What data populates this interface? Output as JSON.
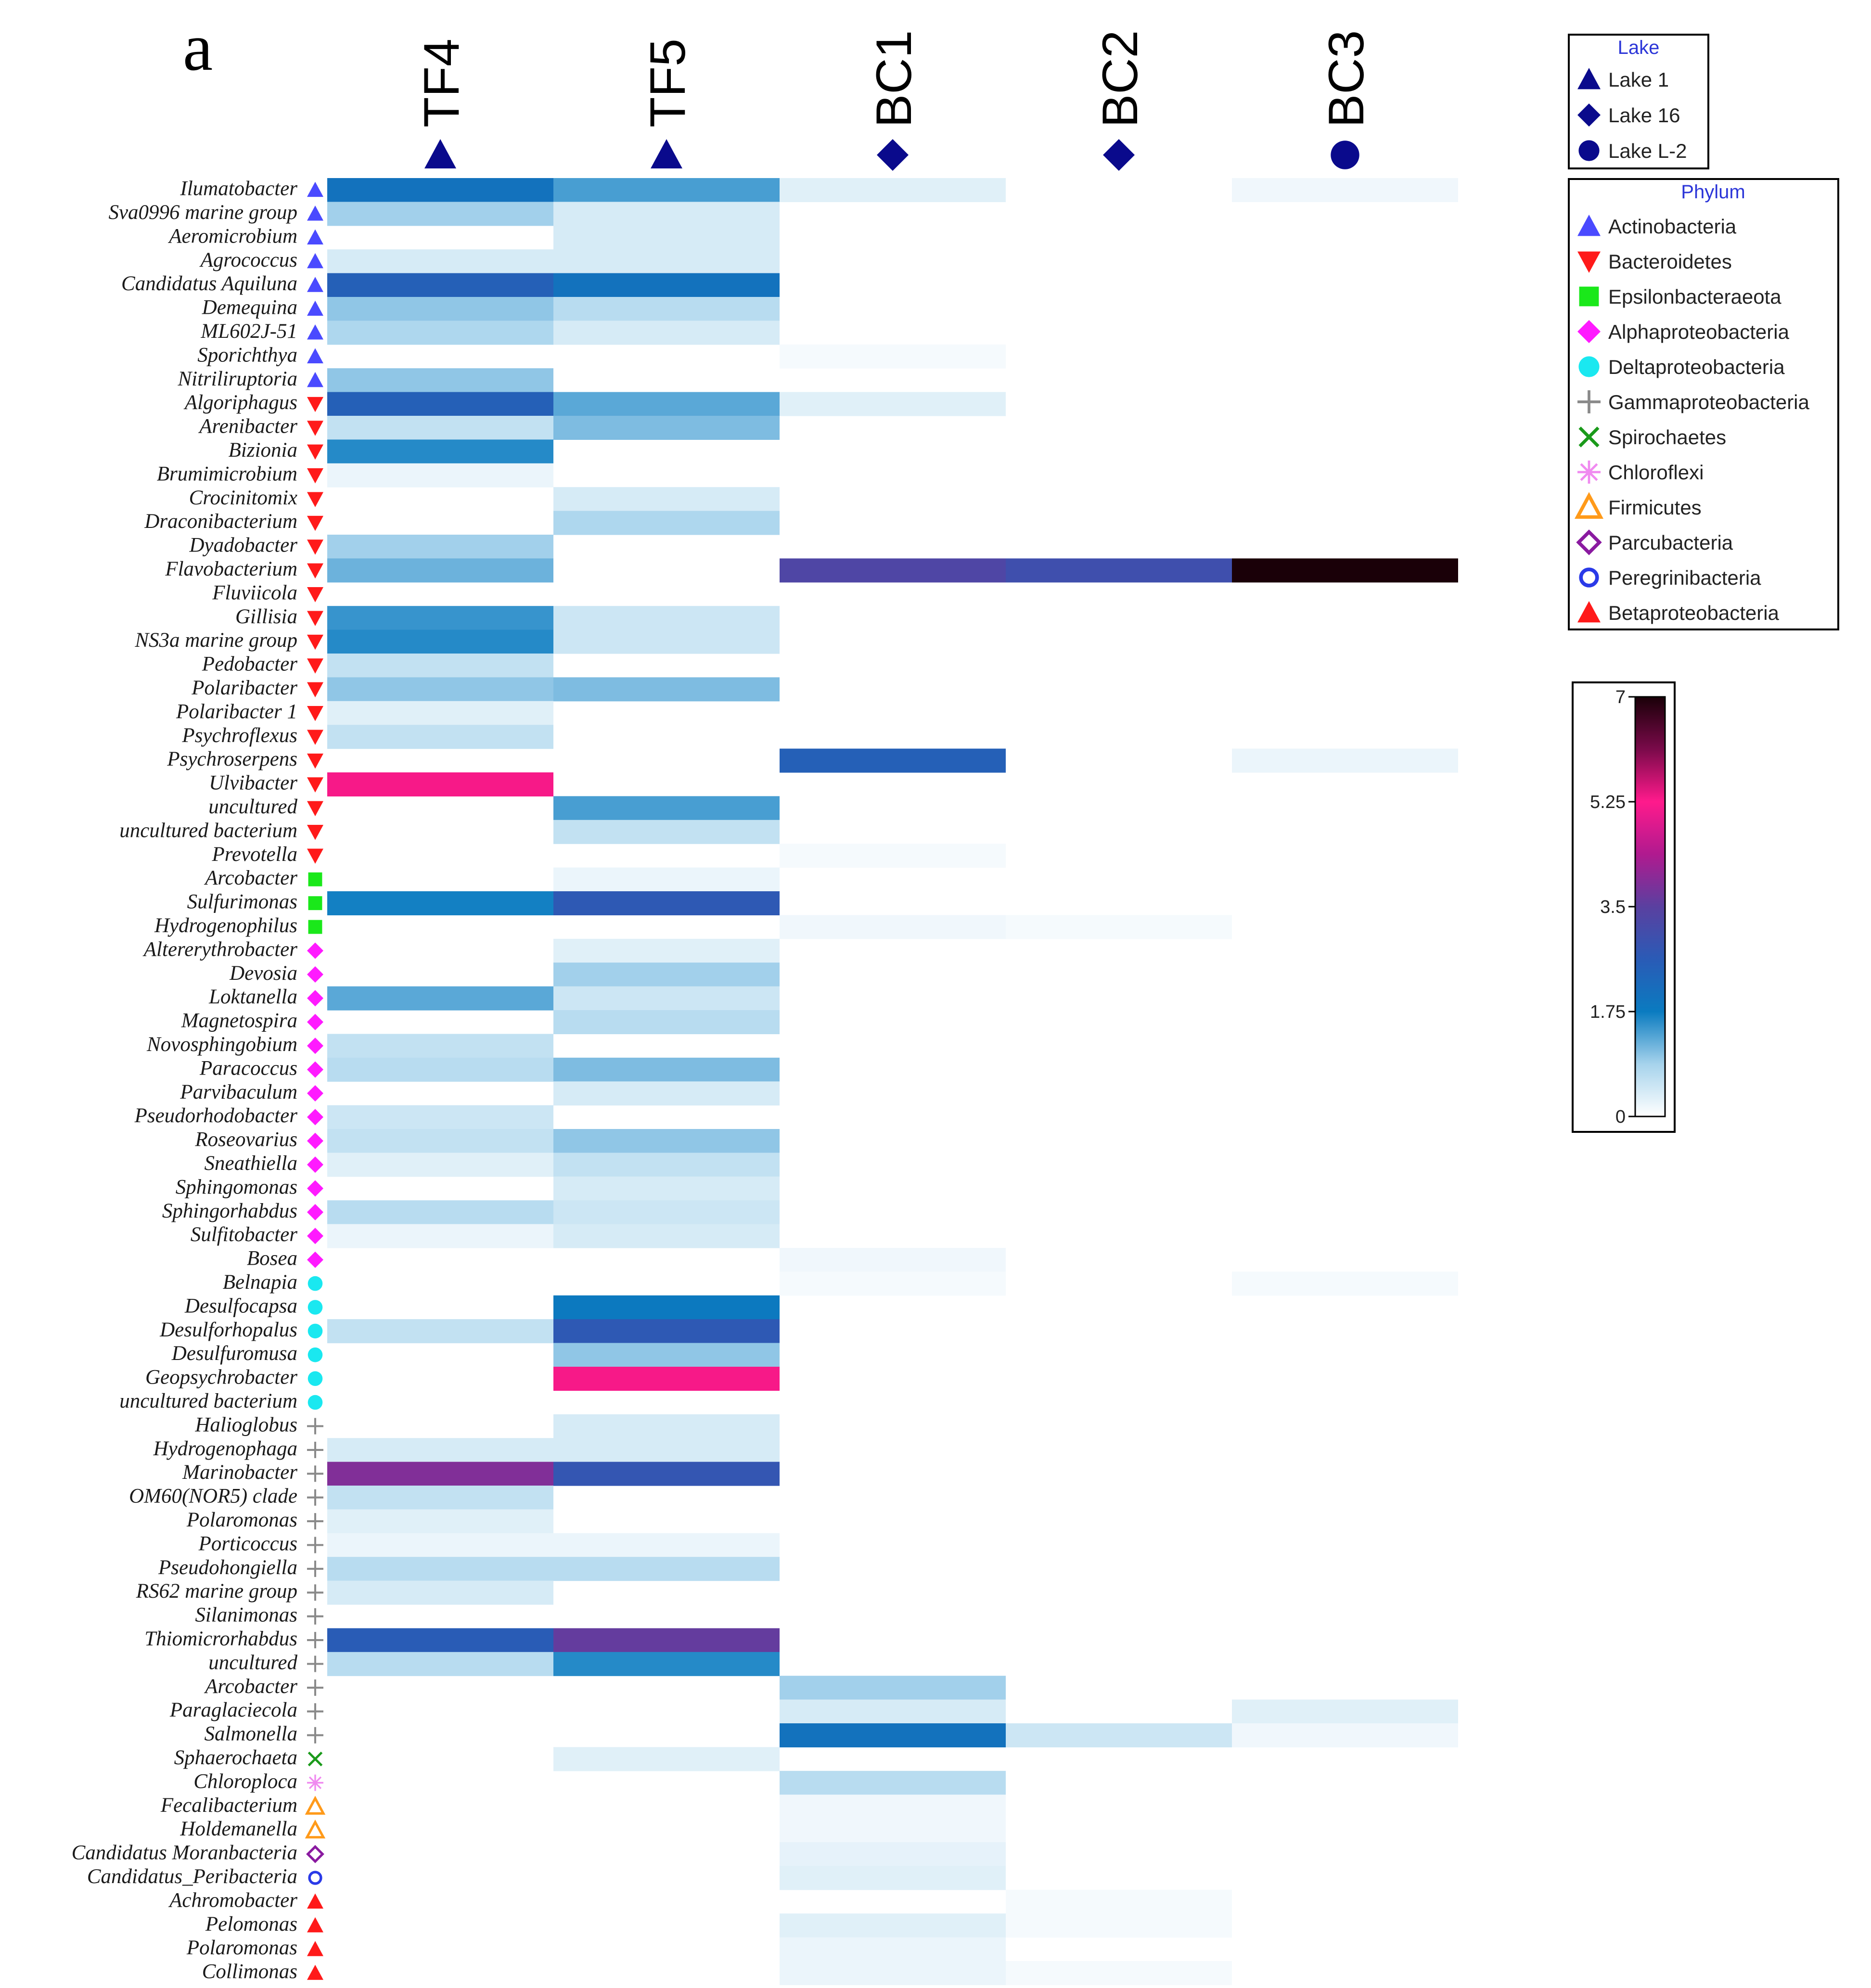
{
  "chart_data": {
    "type": "heatmap",
    "panel_label": "a",
    "columns": [
      {
        "name": "TF4",
        "lake": "Lake 1"
      },
      {
        "name": "TF5",
        "lake": "Lake 1"
      },
      {
        "name": "BC1",
        "lake": "Lake 16"
      },
      {
        "name": "BC2",
        "lake": "Lake 16"
      },
      {
        "name": "BC3",
        "lake": "Lake L-2"
      }
    ],
    "rows": [
      {
        "name": "Ilumatobacter",
        "phylum": "Actinobacteria",
        "values": [
          2.0,
          1.4,
          0.3,
          null,
          0.15
        ]
      },
      {
        "name": "Sva0996 marine group",
        "phylum": "Actinobacteria",
        "values": [
          0.9,
          0.4,
          null,
          null,
          null
        ]
      },
      {
        "name": "Aeromicrobium",
        "phylum": "Actinobacteria",
        "values": [
          null,
          0.4,
          null,
          null,
          null
        ]
      },
      {
        "name": "Agrococcus",
        "phylum": "Actinobacteria",
        "values": [
          0.4,
          0.4,
          null,
          null,
          null
        ]
      },
      {
        "name": "Candidatus Aquiluna",
        "phylum": "Actinobacteria",
        "values": [
          2.5,
          2.0,
          null,
          null,
          null
        ]
      },
      {
        "name": "Demequina",
        "phylum": "Actinobacteria",
        "values": [
          1.0,
          0.7,
          null,
          null,
          null
        ]
      },
      {
        "name": "ML602J-51",
        "phylum": "Actinobacteria",
        "values": [
          0.8,
          0.4,
          null,
          null,
          null
        ]
      },
      {
        "name": "Sporichthya",
        "phylum": "Actinobacteria",
        "values": [
          null,
          null,
          0.1,
          null,
          null
        ]
      },
      {
        "name": "Nitriliruptoria",
        "phylum": "Actinobacteria",
        "values": [
          1.0,
          null,
          null,
          null,
          null
        ]
      },
      {
        "name": "Algoriphagus",
        "phylum": "Bacteroidetes",
        "values": [
          2.5,
          1.3,
          0.3,
          null,
          null
        ]
      },
      {
        "name": "Arenibacter",
        "phylum": "Bacteroidetes",
        "values": [
          0.6,
          1.1,
          null,
          null,
          null
        ]
      },
      {
        "name": "Bizionia",
        "phylum": "Bacteroidetes",
        "values": [
          1.6,
          null,
          null,
          null,
          null
        ]
      },
      {
        "name": "Brumimicrobium",
        "phylum": "Bacteroidetes",
        "values": [
          0.2,
          null,
          null,
          null,
          null
        ]
      },
      {
        "name": "Crocinitomix",
        "phylum": "Bacteroidetes",
        "values": [
          null,
          0.4,
          null,
          null,
          null
        ]
      },
      {
        "name": "Draconibacterium",
        "phylum": "Bacteroidetes",
        "values": [
          null,
          0.8,
          null,
          null,
          null
        ]
      },
      {
        "name": "Dyadobacter",
        "phylum": "Bacteroidetes",
        "values": [
          0.9,
          null,
          null,
          null,
          null
        ]
      },
      {
        "name": "Flavobacterium",
        "phylum": "Bacteroidetes",
        "values": [
          1.2,
          null,
          3.3,
          3.0,
          7.0
        ]
      },
      {
        "name": "Fluviicola",
        "phylum": "Bacteroidetes",
        "values": [
          null,
          null,
          null,
          null,
          null
        ]
      },
      {
        "name": "Gillisia",
        "phylum": "Bacteroidetes",
        "values": [
          1.5,
          0.5,
          null,
          null,
          null
        ]
      },
      {
        "name": "NS3a marine group",
        "phylum": "Bacteroidetes",
        "values": [
          1.6,
          0.5,
          null,
          null,
          null
        ]
      },
      {
        "name": "Pedobacter",
        "phylum": "Bacteroidetes",
        "values": [
          0.6,
          null,
          null,
          null,
          null
        ]
      },
      {
        "name": "Polaribacter",
        "phylum": "Bacteroidetes",
        "values": [
          1.0,
          1.1,
          null,
          null,
          null
        ]
      },
      {
        "name": "Polaribacter 1",
        "phylum": "Bacteroidetes",
        "values": [
          0.3,
          null,
          null,
          null,
          null
        ]
      },
      {
        "name": "Psychroflexus",
        "phylum": "Bacteroidetes",
        "values": [
          0.6,
          null,
          null,
          null,
          null
        ]
      },
      {
        "name": "Psychroserpens",
        "phylum": "Bacteroidetes",
        "values": [
          null,
          null,
          2.5,
          null,
          0.2
        ]
      },
      {
        "name": "Ulvibacter",
        "phylum": "Bacteroidetes",
        "values": [
          5.3,
          null,
          null,
          null,
          null
        ]
      },
      {
        "name": "uncultured",
        "phylum": "Bacteroidetes",
        "values": [
          null,
          1.4,
          null,
          null,
          null
        ]
      },
      {
        "name": "uncultured bacterium",
        "phylum": "Bacteroidetes",
        "values": [
          null,
          0.6,
          null,
          null,
          null
        ]
      },
      {
        "name": "Prevotella",
        "phylum": "Bacteroidetes",
        "values": [
          null,
          null,
          0.1,
          null,
          null
        ]
      },
      {
        "name": "Arcobacter",
        "phylum": "Epsilonbacteraeota",
        "values": [
          null,
          0.2,
          null,
          null,
          null
        ]
      },
      {
        "name": "Sulfurimonas",
        "phylum": "Epsilonbacteraeota",
        "values": [
          1.7,
          2.7,
          null,
          null,
          null
        ]
      },
      {
        "name": "Hydrogenophilus",
        "phylum": "Epsilonbacteraeota",
        "values": [
          null,
          null,
          0.15,
          0.1,
          null
        ]
      },
      {
        "name": "Altererythrobacter",
        "phylum": "Alphaproteobacteria",
        "values": [
          null,
          0.3,
          null,
          null,
          null
        ]
      },
      {
        "name": "Devosia",
        "phylum": "Alphaproteobacteria",
        "values": [
          null,
          0.9,
          null,
          null,
          null
        ]
      },
      {
        "name": "Loktanella",
        "phylum": "Alphaproteobacteria",
        "values": [
          1.3,
          0.5,
          null,
          null,
          null
        ]
      },
      {
        "name": "Magnetospira",
        "phylum": "Alphaproteobacteria",
        "values": [
          null,
          0.7,
          null,
          null,
          null
        ]
      },
      {
        "name": "Novosphingobium",
        "phylum": "Alphaproteobacteria",
        "values": [
          0.6,
          null,
          null,
          null,
          null
        ]
      },
      {
        "name": "Paracoccus",
        "phylum": "Alphaproteobacteria",
        "values": [
          0.7,
          1.1,
          null,
          null,
          null
        ]
      },
      {
        "name": "Parvibaculum",
        "phylum": "Alphaproteobacteria",
        "values": [
          null,
          0.4,
          null,
          null,
          null
        ]
      },
      {
        "name": "Pseudorhodobacter",
        "phylum": "Alphaproteobacteria",
        "values": [
          0.5,
          null,
          null,
          null,
          null
        ]
      },
      {
        "name": "Roseovarius",
        "phylum": "Alphaproteobacteria",
        "values": [
          0.6,
          1.0,
          null,
          null,
          null
        ]
      },
      {
        "name": "Sneathiella",
        "phylum": "Alphaproteobacteria",
        "values": [
          0.3,
          0.6,
          null,
          null,
          null
        ]
      },
      {
        "name": "Sphingomonas",
        "phylum": "Alphaproteobacteria",
        "values": [
          null,
          0.4,
          null,
          null,
          null
        ]
      },
      {
        "name": "Sphingorhabdus",
        "phylum": "Alphaproteobacteria",
        "values": [
          0.7,
          0.5,
          null,
          null,
          null
        ]
      },
      {
        "name": "Sulfitobacter",
        "phylum": "Alphaproteobacteria",
        "values": [
          0.2,
          0.4,
          null,
          null,
          null
        ]
      },
      {
        "name": "Bosea",
        "phylum": "Alphaproteobacteria",
        "values": [
          null,
          null,
          0.15,
          null,
          null
        ]
      },
      {
        "name": "Belnapia",
        "phylum": "Deltaproteobacteria",
        "values": [
          null,
          null,
          0.1,
          null,
          0.1
        ]
      },
      {
        "name": "Desulfocapsa",
        "phylum": "Deltaproteobacteria",
        "values": [
          null,
          1.8,
          null,
          null,
          null
        ]
      },
      {
        "name": "Desulforhopalus",
        "phylum": "Deltaproteobacteria",
        "values": [
          0.6,
          2.7,
          null,
          null,
          null
        ]
      },
      {
        "name": "Desulfuromusa",
        "phylum": "Deltaproteobacteria",
        "values": [
          null,
          1.0,
          null,
          null,
          null
        ]
      },
      {
        "name": "Geopsychrobacter",
        "phylum": "Deltaproteobacteria",
        "values": [
          null,
          5.3,
          null,
          null,
          null
        ]
      },
      {
        "name": "uncultured bacterium",
        "phylum": "Deltaproteobacteria",
        "values": [
          null,
          null,
          null,
          null,
          null
        ]
      },
      {
        "name": "Halioglobus",
        "phylum": "Gammaproteobacteria",
        "values": [
          null,
          0.4,
          null,
          null,
          null
        ]
      },
      {
        "name": "Hydrogenophaga",
        "phylum": "Gammaproteobacteria",
        "values": [
          0.4,
          0.4,
          null,
          null,
          null
        ]
      },
      {
        "name": "Marinobacter",
        "phylum": "Gammaproteobacteria",
        "values": [
          3.9,
          2.8,
          null,
          null,
          null
        ]
      },
      {
        "name": "OM60(NOR5) clade",
        "phylum": "Gammaproteobacteria",
        "values": [
          0.6,
          null,
          null,
          null,
          null
        ]
      },
      {
        "name": "Polaromonas",
        "phylum": "Gammaproteobacteria",
        "values": [
          0.3,
          null,
          null,
          null,
          null
        ]
      },
      {
        "name": "Porticoccus",
        "phylum": "Gammaproteobacteria",
        "values": [
          0.2,
          0.2,
          null,
          null,
          null
        ]
      },
      {
        "name": "Pseudohongiella",
        "phylum": "Gammaproteobacteria",
        "values": [
          0.7,
          0.7,
          null,
          null,
          null
        ]
      },
      {
        "name": "RS62 marine group",
        "phylum": "Gammaproteobacteria",
        "values": [
          0.4,
          null,
          null,
          null,
          null
        ]
      },
      {
        "name": "Silanimonas",
        "phylum": "Gammaproteobacteria",
        "values": [
          null,
          null,
          null,
          null,
          null
        ]
      },
      {
        "name": "Thiomicrorhabdus",
        "phylum": "Gammaproteobacteria",
        "values": [
          2.6,
          3.6,
          null,
          null,
          null
        ]
      },
      {
        "name": "uncultured",
        "phylum": "Gammaproteobacteria",
        "values": [
          0.7,
          1.6,
          null,
          null,
          null
        ]
      },
      {
        "name": "Arcobacter",
        "phylum": "Gammaproteobacteria",
        "values": [
          null,
          null,
          0.9,
          null,
          null
        ]
      },
      {
        "name": "Paraglaciecola",
        "phylum": "Gammaproteobacteria",
        "values": [
          null,
          null,
          0.4,
          null,
          0.3
        ]
      },
      {
        "name": "Salmonella",
        "phylum": "Gammaproteobacteria",
        "values": [
          null,
          null,
          2.0,
          0.5,
          0.15
        ]
      },
      {
        "name": "Sphaerochaeta",
        "phylum": "Spirochaetes",
        "values": [
          null,
          0.3,
          null,
          null,
          null
        ]
      },
      {
        "name": "Chloroploca",
        "phylum": "Chloroflexi",
        "values": [
          null,
          null,
          0.7,
          null,
          null
        ]
      },
      {
        "name": "Fecalibacterium",
        "phylum": "Firmicutes",
        "values": [
          null,
          null,
          0.15,
          null,
          null
        ]
      },
      {
        "name": "Holdemanella",
        "phylum": "Firmicutes",
        "values": [
          null,
          null,
          0.15,
          null,
          null
        ]
      },
      {
        "name": "Candidatus Moranbacteria",
        "phylum": "Parcubacteria",
        "values": [
          null,
          null,
          0.25,
          null,
          null
        ]
      },
      {
        "name": "Candidatus_Peribacteria",
        "phylum": "Peregrinibacteria",
        "values": [
          null,
          null,
          0.3,
          null,
          null
        ]
      },
      {
        "name": "Achromobacter",
        "phylum": "Betaproteobacteria",
        "values": [
          null,
          null,
          null,
          0.1,
          null
        ]
      },
      {
        "name": "Pelomonas",
        "phylum": "Betaproteobacteria",
        "values": [
          null,
          null,
          0.3,
          0.1,
          null
        ]
      },
      {
        "name": "Polaromonas",
        "phylum": "Betaproteobacteria",
        "values": [
          null,
          null,
          0.2,
          null,
          null
        ]
      },
      {
        "name": "Collimonas",
        "phylum": "Betaproteobacteria",
        "values": [
          null,
          null,
          0.2,
          0.1,
          null
        ]
      }
    ],
    "lake_legend": {
      "title": "Lake",
      "items": [
        {
          "label": "Lake 1",
          "shape": "triangle-up"
        },
        {
          "label": "Lake 16",
          "shape": "diamond"
        },
        {
          "label": "Lake L-2",
          "shape": "circle"
        }
      ],
      "color": "#0a0a8c"
    },
    "phylum_legend": {
      "title": "Phylum",
      "items": [
        {
          "label": "Actinobacteria",
          "shape": "triangle-up",
          "color": "#4a4aff"
        },
        {
          "label": "Bacteroidetes",
          "shape": "triangle-down",
          "color": "#ff1a1a"
        },
        {
          "label": "Epsilonbacteraeota",
          "shape": "square",
          "color": "#1ae81a"
        },
        {
          "label": "Alphaproteobacteria",
          "shape": "diamond",
          "color": "#ff1aff"
        },
        {
          "label": "Deltaproteobacteria",
          "shape": "circle",
          "color": "#1ae8f0"
        },
        {
          "label": "Gammaproteobacteria",
          "shape": "plus",
          "color": "#8a8a8a"
        },
        {
          "label": "Spirochaetes",
          "shape": "cross",
          "color": "#1a9a1a"
        },
        {
          "label": "Chloroflexi",
          "shape": "asterisk",
          "color": "#f08af0"
        },
        {
          "label": "Firmicutes",
          "shape": "triangle-open",
          "color": "#ff9a1a"
        },
        {
          "label": "Parcubacteria",
          "shape": "diamond-open",
          "color": "#8a1aa0"
        },
        {
          "label": "Peregrinibacteria",
          "shape": "circle-open",
          "color": "#2a3ae8"
        },
        {
          "label": "Betaproteobacteria",
          "shape": "triangle-up",
          "color": "#ff1a1a"
        }
      ]
    },
    "colorbar": {
      "min": 0,
      "max": 7,
      "ticks": [
        "0",
        "1.75",
        "3.5",
        "5.25",
        "7"
      ],
      "colors": [
        "#ffffff",
        "#a6d3ec",
        "#0a7bc0",
        "#2a5bb6",
        "#5a40a0",
        "#b01a8f",
        "#ff1a8c",
        "#7a0a4a",
        "#1a0008"
      ]
    }
  }
}
